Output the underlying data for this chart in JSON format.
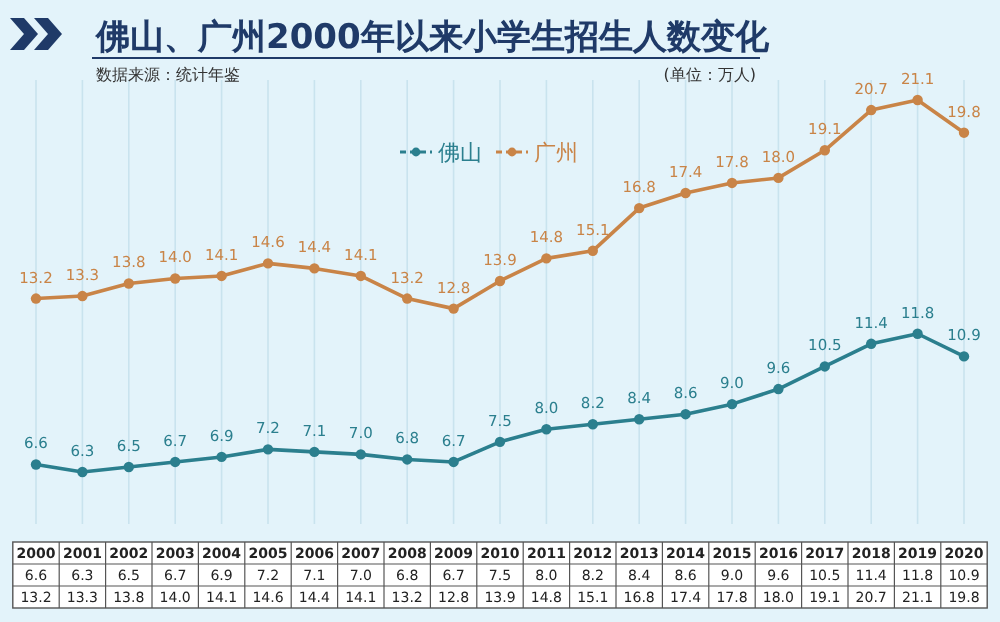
{
  "chart_data": {
    "type": "line",
    "title": "佛山、广州2000年以来小学生招生人数变化",
    "annotations": [
      "数据来源：统计年鉴",
      "(单位：万人)"
    ],
    "categories": [
      "2000",
      "2001",
      "2002",
      "2003",
      "2004",
      "2005",
      "2006",
      "2007",
      "2008",
      "2009",
      "2010",
      "2011",
      "2012",
      "2013",
      "2014",
      "2015",
      "2016",
      "2017",
      "2018",
      "2019",
      "2020"
    ],
    "series": [
      {
        "name": "佛山",
        "color": "#2b7f8e",
        "values": [
          6.6,
          6.3,
          6.5,
          6.7,
          6.9,
          7.2,
          7.1,
          7.0,
          6.8,
          6.7,
          7.5,
          8.0,
          8.2,
          8.4,
          8.6,
          9.0,
          9.6,
          10.5,
          11.4,
          11.8,
          10.9
        ],
        "value_labels": [
          "6.6",
          "6.3",
          "6.5",
          "6.7",
          "6.9",
          "7.2",
          "7.1",
          "7.0",
          "6.8",
          "6.7",
          "7.5",
          "8.0",
          "8.2",
          "8.4",
          "8.6",
          "9.0",
          "9.6",
          "10.5",
          "11.4",
          "11.8",
          "10.9"
        ]
      },
      {
        "name": "广州",
        "color": "#c98447",
        "values": [
          13.2,
          13.3,
          13.8,
          14.0,
          14.1,
          14.6,
          14.4,
          14.1,
          13.2,
          12.8,
          13.9,
          14.8,
          15.1,
          16.8,
          17.4,
          17.8,
          18.0,
          19.1,
          20.7,
          21.1,
          19.8
        ],
        "value_labels": [
          "13.2",
          "13.3",
          "13.8",
          "14.0",
          "14.1",
          "14.6",
          "14.4",
          "14.1",
          "13.2",
          "12.8",
          "13.9",
          "14.8",
          "15.1",
          "16.8",
          "17.4",
          "17.8",
          "18.0",
          "19.1",
          "20.7",
          "21.1",
          "19.8"
        ]
      }
    ],
    "grid": "x",
    "legend": "top",
    "marker": "circle"
  }
}
